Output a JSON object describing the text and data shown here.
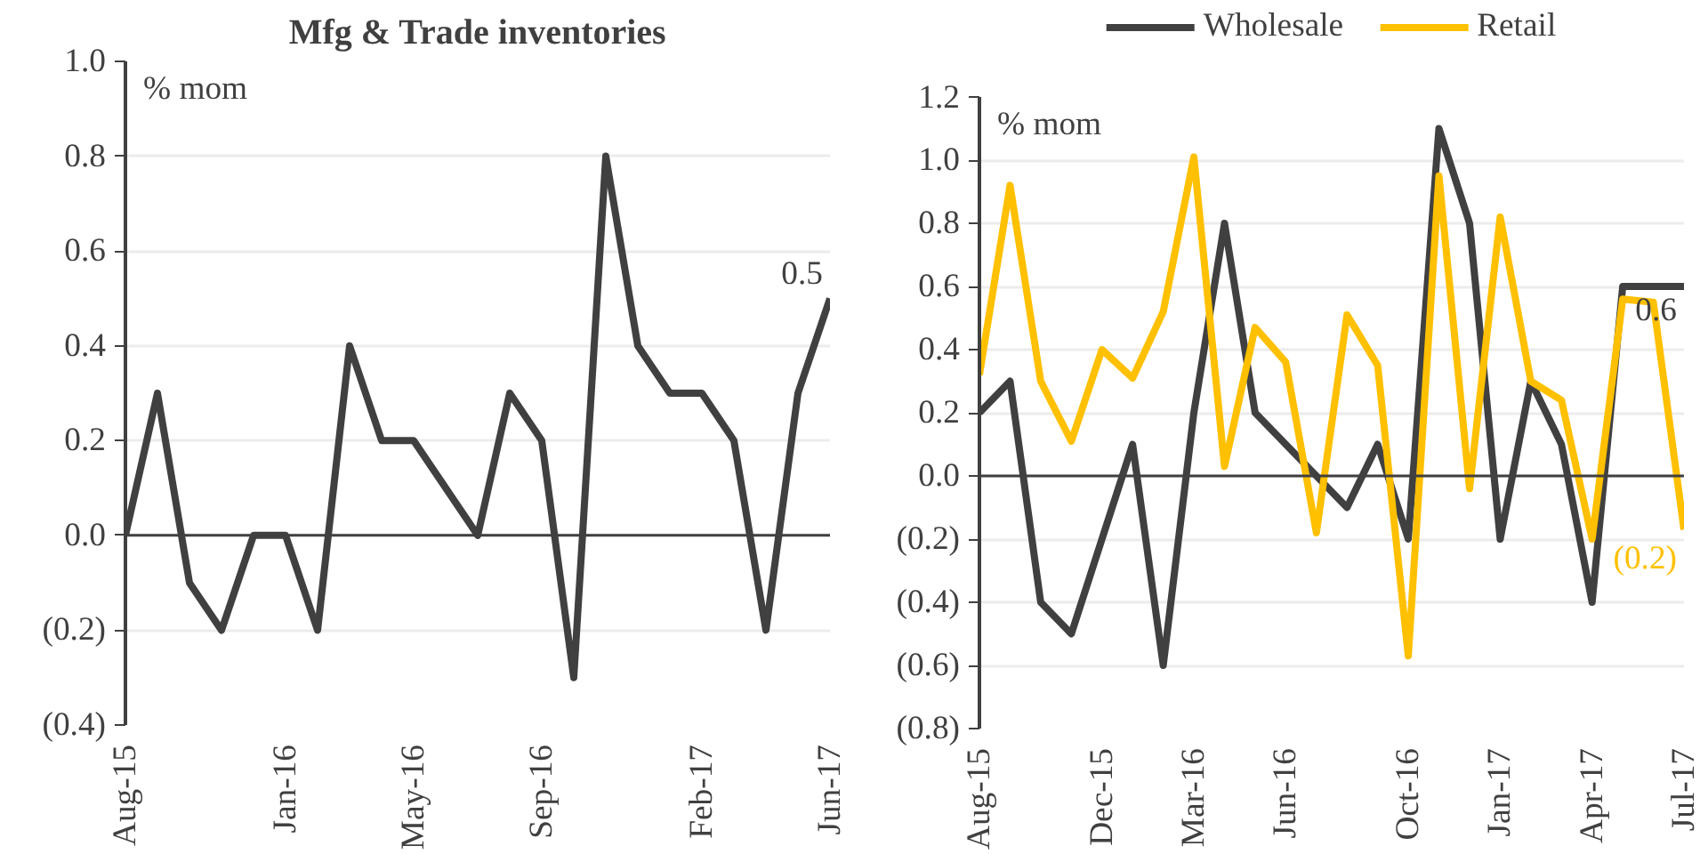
{
  "chart_data": [
    {
      "type": "line",
      "title": "Mfg & Trade inventories",
      "ylabel": "% mom",
      "categories": [
        "Aug-15",
        null,
        null,
        null,
        null,
        "Jan-16",
        null,
        null,
        null,
        "May-16",
        null,
        null,
        null,
        "Sep-16",
        null,
        null,
        null,
        null,
        "Feb-17",
        null,
        null,
        null,
        "Jun-17"
      ],
      "series": [
        {
          "color": "#404040",
          "values": [
            0.0,
            0.3,
            -0.1,
            -0.2,
            0.0,
            0.0,
            -0.2,
            0.4,
            0.2,
            0.2,
            0.1,
            0.0,
            0.3,
            0.2,
            -0.3,
            0.8,
            0.4,
            0.3,
            0.3,
            0.2,
            -0.2,
            0.3,
            0.5
          ],
          "value_labels": [
            null,
            null,
            null,
            null,
            null,
            null,
            null,
            null,
            null,
            null,
            null,
            null,
            null,
            null,
            null,
            null,
            null,
            null,
            null,
            null,
            null,
            null,
            "0.5"
          ]
        }
      ],
      "ylim": [
        -0.4,
        1.0
      ],
      "yticks": [
        {
          "value": -0.4,
          "label": "(0.4)"
        },
        {
          "value": -0.2,
          "label": "(0.2)"
        },
        {
          "value": 0.0,
          "label": "0.0"
        },
        {
          "value": 0.2,
          "label": "0.2"
        },
        {
          "value": 0.4,
          "label": "0.4"
        },
        {
          "value": 0.6,
          "label": "0.6"
        },
        {
          "value": 0.8,
          "label": "0.8"
        },
        {
          "value": 1.0,
          "label": "1.0"
        }
      ],
      "grid": "y",
      "legend": false,
      "marker": "none",
      "line_style": "solid"
    },
    {
      "type": "line",
      "ylabel": "% mom",
      "categories": [
        "Aug-15",
        null,
        null,
        null,
        "Dec-15",
        null,
        null,
        "Mar-16",
        null,
        null,
        "Jun-16",
        null,
        null,
        null,
        "Oct-16",
        null,
        null,
        "Jan-17",
        null,
        null,
        "Apr-17",
        null,
        null,
        "Jul-17"
      ],
      "series": [
        {
          "name": "Wholesale",
          "color": "#404040",
          "values": [
            0.2,
            0.3,
            -0.4,
            -0.5,
            -0.2,
            0.1,
            -0.6,
            0.2,
            0.8,
            0.2,
            0.1,
            0.0,
            -0.1,
            0.1,
            -0.2,
            1.1,
            0.8,
            -0.2,
            0.3,
            0.1,
            -0.4,
            0.6,
            0.6,
            0.6
          ],
          "value_labels": [
            null,
            null,
            null,
            null,
            null,
            null,
            null,
            null,
            null,
            null,
            null,
            null,
            null,
            null,
            null,
            null,
            null,
            null,
            null,
            null,
            null,
            null,
            null,
            "0.6"
          ]
        },
        {
          "name": "Retail",
          "color": "#ffc000",
          "values": [
            0.32,
            0.92,
            0.3,
            0.11,
            0.4,
            0.31,
            0.52,
            1.01,
            0.03,
            0.47,
            0.36,
            -0.18,
            0.51,
            0.35,
            -0.57,
            0.95,
            -0.04,
            0.82,
            0.3,
            0.24,
            -0.2,
            0.56,
            0.55,
            -0.17
          ],
          "value_labels": [
            null,
            null,
            null,
            null,
            null,
            null,
            null,
            null,
            null,
            null,
            null,
            null,
            null,
            null,
            null,
            null,
            null,
            null,
            null,
            null,
            null,
            null,
            null,
            "(0.2)"
          ]
        }
      ],
      "ylim": [
        -0.8,
        1.2
      ],
      "yticks": [
        {
          "value": -0.8,
          "label": "(0.8)"
        },
        {
          "value": -0.6,
          "label": "(0.6)"
        },
        {
          "value": -0.4,
          "label": "(0.4)"
        },
        {
          "value": -0.2,
          "label": "(0.2)"
        },
        {
          "value": 0.0,
          "label": "0.0"
        },
        {
          "value": 0.2,
          "label": "0.2"
        },
        {
          "value": 0.4,
          "label": "0.4"
        },
        {
          "value": 0.6,
          "label": "0.6"
        },
        {
          "value": 0.8,
          "label": "0.8"
        },
        {
          "value": 1.0,
          "label": "1.0"
        },
        {
          "value": 1.2,
          "label": "1.2"
        }
      ],
      "grid": "y",
      "legend": "top",
      "marker": "none",
      "line_style": "solid"
    }
  ]
}
